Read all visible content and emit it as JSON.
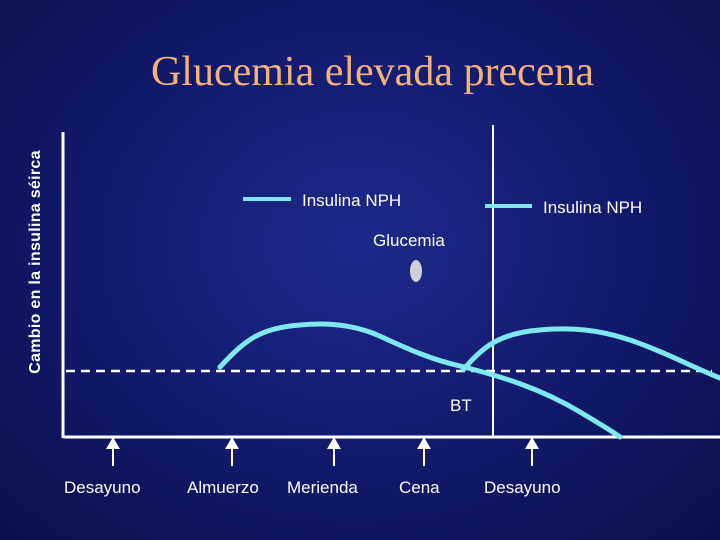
{
  "title": "Glucemia elevada precena",
  "y_axis_label": "Cambio en la insulina séirca",
  "legend": {
    "insulin_label_1": "Insulina NPH",
    "insulin_label_2": "Insulina NPH",
    "glucose_label": "Glucemia"
  },
  "baseline_label": "BT",
  "meals": [
    "Desayuno",
    "Almuerzo",
    "Merienda",
    "Cena",
    "Desayuno"
  ],
  "colors": {
    "background": "#12196b",
    "title": "#f4b27a",
    "insulin_curve": "#7fe7f2",
    "glucose_marker": "#d0d0d8",
    "axis": "#ffffff"
  }
}
